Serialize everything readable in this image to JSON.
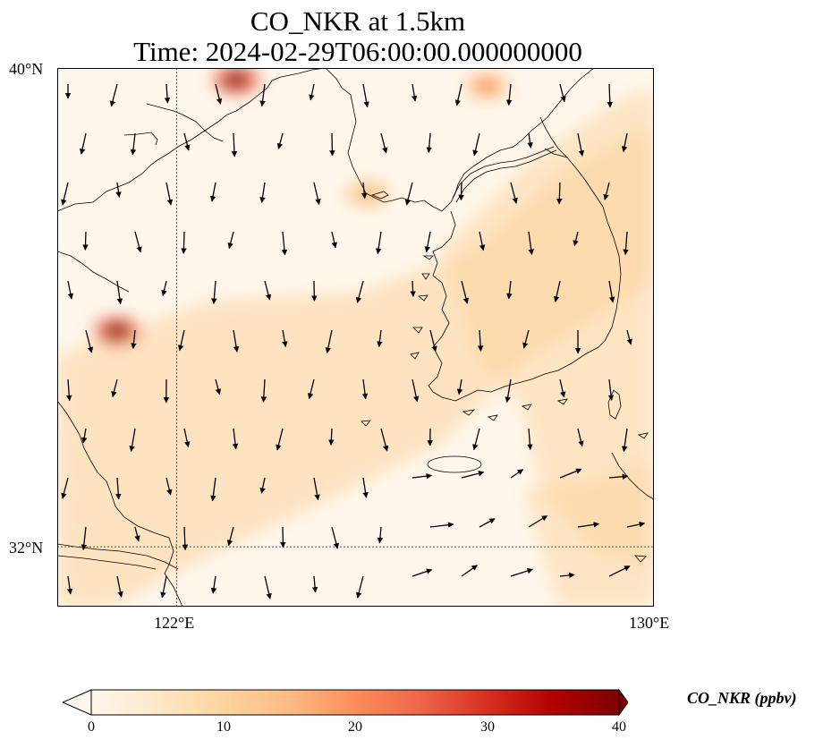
{
  "title": {
    "line1": "CO_NKR at 1.5km",
    "line2": "Time: 2024-02-29T06:00:00.000000000"
  },
  "axes": {
    "lat_labels": [
      "40°N",
      "32°N"
    ],
    "lon_labels": [
      "122°E",
      "130°E"
    ],
    "lat_range": [
      31,
      40
    ],
    "lon_range": [
      120,
      130
    ],
    "gridlines": [
      {
        "lon": 122
      },
      {
        "lat": 32
      }
    ]
  },
  "colorbar": {
    "label": "CO_NKR (ppbv)",
    "min": 0,
    "max": 40,
    "ticks": [
      "0",
      "10",
      "20",
      "30",
      "40"
    ],
    "colormap": "OrRd",
    "colors": [
      "#fff7ec",
      "#fee8c8",
      "#fdd49e",
      "#fdbb84",
      "#fc8d59",
      "#ef6548",
      "#d7301f",
      "#b30000",
      "#7f0000"
    ]
  },
  "chart_data": {
    "type": "heatmap",
    "variable": "CO_NKR",
    "units": "ppbv",
    "hotspots": [
      {
        "lon": 121.0,
        "lat": 35.6,
        "value": 38
      },
      {
        "lon": 123.0,
        "lat": 39.8,
        "value": 38
      },
      {
        "lon": 125.2,
        "lat": 37.9,
        "value": 14
      },
      {
        "lon": 127.2,
        "lat": 39.7,
        "value": 18
      }
    ],
    "background_ppbv": 5,
    "band_ppbv": 9
  }
}
